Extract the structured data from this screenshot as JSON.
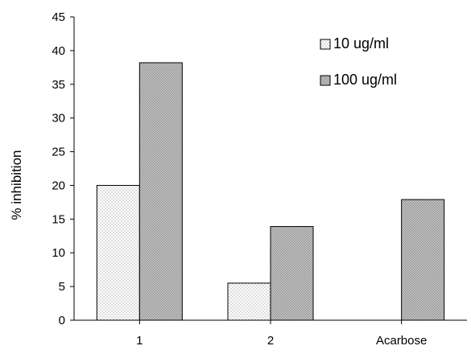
{
  "chart_data": {
    "type": "bar",
    "categories": [
      "1",
      "2",
      "Acarbose"
    ],
    "series": [
      {
        "name": "10 ug/ml",
        "values": [
          20,
          5.5,
          null
        ],
        "pattern": "dotted",
        "color": "#ffffff"
      },
      {
        "name": "100 ug/ml",
        "values": [
          38.2,
          13.9,
          17.9
        ],
        "pattern": "crosshatch",
        "color": "#bfbfbf"
      }
    ],
    "title": "",
    "xlabel": "",
    "ylabel": "% inhibition",
    "ylim": [
      0,
      45
    ],
    "yticks": [
      "0",
      "5",
      "10",
      "15",
      "20",
      "25",
      "30",
      "35",
      "40",
      "45"
    ],
    "grid": false,
    "legend_position": "top-right"
  }
}
